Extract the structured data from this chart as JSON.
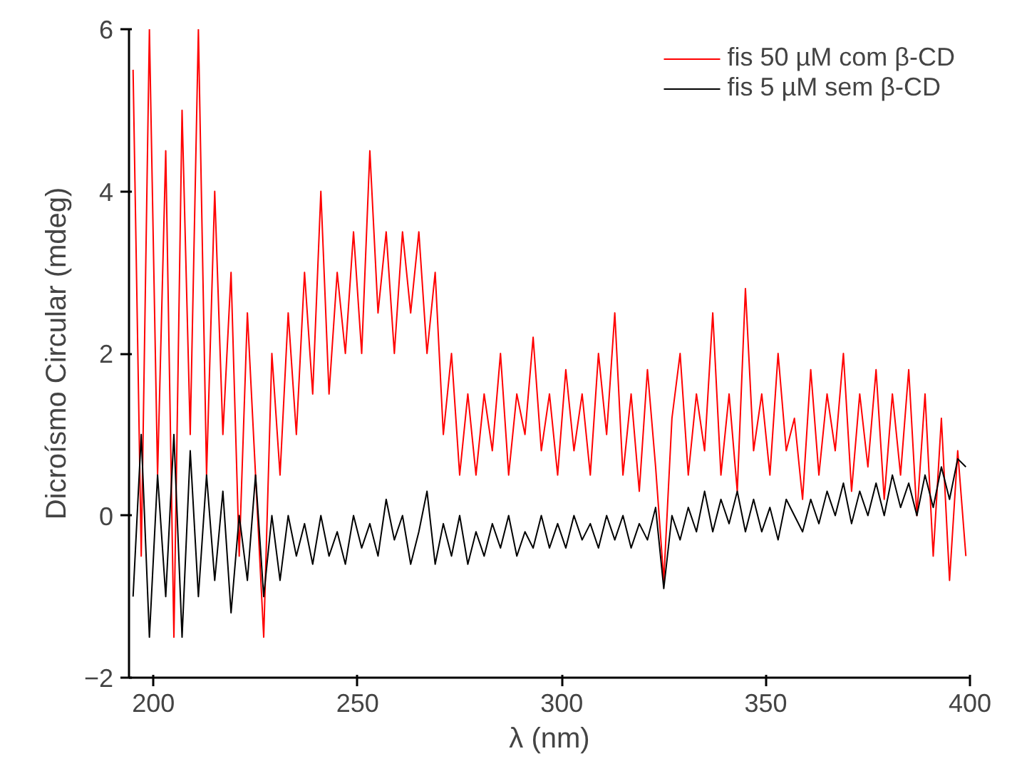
{
  "chart_data": {
    "type": "line",
    "xlabel": "λ (nm)",
    "ylabel": "Dicroísmo Circular (mdeg)",
    "x": [
      195,
      197,
      199,
      201,
      203,
      205,
      207,
      209,
      211,
      213,
      215,
      217,
      219,
      221,
      223,
      225,
      227,
      229,
      231,
      233,
      235,
      237,
      239,
      241,
      243,
      245,
      247,
      249,
      251,
      253,
      255,
      257,
      259,
      261,
      263,
      265,
      267,
      269,
      271,
      273,
      275,
      277,
      279,
      281,
      283,
      285,
      287,
      289,
      291,
      293,
      295,
      297,
      299,
      301,
      303,
      305,
      307,
      309,
      311,
      313,
      315,
      317,
      319,
      321,
      323,
      325,
      327,
      329,
      331,
      333,
      335,
      337,
      339,
      341,
      343,
      345,
      347,
      349,
      351,
      353,
      355,
      357,
      359,
      361,
      363,
      365,
      367,
      369,
      371,
      373,
      375,
      377,
      379,
      381,
      383,
      385,
      387,
      389,
      391,
      393,
      395,
      397,
      399
    ],
    "series": [
      {
        "name": "fis 50 µM com β-CD",
        "color": "#ff0000",
        "values": [
          5.5,
          -0.5,
          6,
          0.5,
          4.5,
          -1.5,
          5,
          1,
          6,
          0.5,
          4,
          1,
          3,
          -0.5,
          2.5,
          0.5,
          -1.5,
          2,
          0.5,
          2.5,
          1,
          3,
          1.5,
          4,
          1.5,
          3,
          2,
          3.5,
          2,
          4.5,
          2.5,
          3.5,
          2,
          3.5,
          2.5,
          3.5,
          2,
          3,
          1,
          2,
          0.5,
          1.5,
          0.5,
          1.5,
          0.8,
          2,
          0.5,
          1.5,
          1,
          2.2,
          0.8,
          1.5,
          0.5,
          1.8,
          0.8,
          1.5,
          0.5,
          2,
          1,
          2.5,
          0.5,
          1.5,
          0.3,
          1.8,
          0.6,
          -0.8,
          1.2,
          2,
          0.5,
          1.5,
          0.8,
          2.5,
          0.5,
          1.5,
          0.3,
          2.8,
          0.8,
          1.5,
          0.5,
          2,
          0.8,
          1.2,
          0.2,
          1.8,
          0.5,
          1.5,
          0.8,
          2,
          0.3,
          1.5,
          0.6,
          1.8,
          0.2,
          1.5,
          0.5,
          1.8,
          0,
          1.5,
          -0.5,
          1.2,
          -0.8,
          0.8,
          -0.5
        ]
      },
      {
        "name": "fis 5 µM sem β-CD",
        "color": "#000000",
        "values": [
          -1,
          1,
          -1.5,
          0.5,
          -1,
          1,
          -1.5,
          0.8,
          -1,
          0.5,
          -0.8,
          0.3,
          -1.2,
          0,
          -0.8,
          0.5,
          -1,
          0,
          -0.8,
          0,
          -0.5,
          -0.1,
          -0.6,
          0,
          -0.5,
          -0.2,
          -0.6,
          0,
          -0.4,
          -0.1,
          -0.5,
          0.2,
          -0.3,
          0,
          -0.6,
          -0.2,
          0.3,
          -0.6,
          -0.1,
          -0.5,
          0,
          -0.6,
          -0.2,
          -0.5,
          -0.1,
          -0.4,
          0,
          -0.5,
          -0.2,
          -0.4,
          0,
          -0.4,
          -0.1,
          -0.4,
          0,
          -0.3,
          -0.1,
          -0.4,
          0,
          -0.3,
          0,
          -0.4,
          -0.1,
          -0.3,
          0.1,
          -0.9,
          0,
          -0.3,
          0.1,
          -0.2,
          0.3,
          -0.2,
          0.2,
          -0.1,
          0.3,
          -0.2,
          0.2,
          -0.2,
          0.1,
          -0.3,
          0.2,
          0,
          -0.2,
          0.2,
          -0.1,
          0.3,
          0,
          0.4,
          -0.1,
          0.3,
          0,
          0.4,
          0,
          0.5,
          0.1,
          0.4,
          0,
          0.5,
          0.1,
          0.6,
          0.2,
          0.7,
          0.6
        ]
      }
    ],
    "xlim": [
      194,
      400
    ],
    "ylim": [
      -2,
      6
    ],
    "xticks": [
      200,
      250,
      300,
      350,
      400
    ],
    "yticks": [
      -2,
      0,
      2,
      4,
      6
    ],
    "grid": false,
    "legend": "top right",
    "marker": "none",
    "line_style": "solid"
  }
}
